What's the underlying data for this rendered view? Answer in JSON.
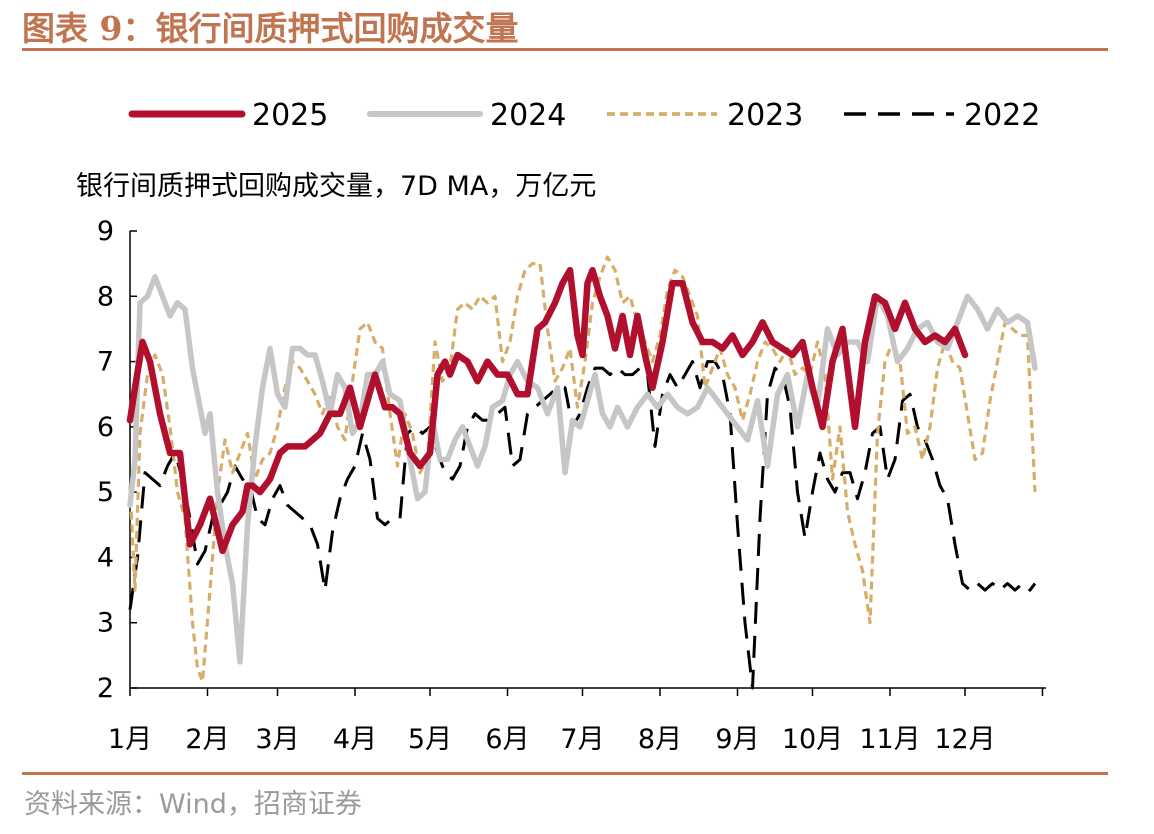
{
  "figure": {
    "title": "图表 9：银行间质押式回购成交量",
    "source": "资料来源：Wind，招商证券"
  },
  "colors": {
    "accent": "#c0744f",
    "s2025": "#b0102e",
    "s2024": "#c6c6c6",
    "s2023": "#d6ae6a",
    "s2022": "#000000"
  },
  "chart_data": {
    "type": "line",
    "title": "银行间质押式回购成交量，7D MA，万亿元",
    "xlabel": "",
    "ylabel": "",
    "x_unit": "day of year",
    "x_tick_labels": [
      "1月",
      "2月",
      "3月",
      "4月",
      "5月",
      "6月",
      "7月",
      "8月",
      "9月",
      "10月",
      "11月",
      "12月"
    ],
    "ylim": [
      2,
      9
    ],
    "yticks": [
      2,
      3,
      4,
      5,
      6,
      7,
      8,
      9
    ],
    "grid": false,
    "legend": "top",
    "series": [
      {
        "name": "2025",
        "style": "solid-thick",
        "x": [
          1,
          3,
          6,
          9,
          13,
          17,
          21,
          25,
          29,
          33,
          38,
          42,
          46,
          48,
          50,
          53,
          57,
          61,
          64,
          67,
          71,
          74,
          77,
          81,
          85,
          89,
          93,
          96,
          99,
          103,
          106,
          109,
          113,
          117,
          121,
          124,
          127,
          129,
          132,
          136,
          140,
          144,
          148,
          152,
          156,
          160,
          164,
          167,
          171,
          174,
          177,
          180,
          182,
          184,
          186,
          189,
          192,
          195,
          198,
          201,
          204,
          207,
          210,
          214,
          218,
          222,
          226,
          230,
          234,
          238,
          242,
          246,
          250,
          254,
          258,
          262,
          266,
          270,
          274,
          278,
          282,
          286,
          291,
          295,
          299,
          303,
          307,
          311,
          315,
          319,
          323,
          327,
          331,
          335
        ],
        "values": [
          6.1,
          6.6,
          7.3,
          7.0,
          6.2,
          5.6,
          5.6,
          4.2,
          4.5,
          4.9,
          4.1,
          4.5,
          4.7,
          5.1,
          5.1,
          5.0,
          5.2,
          5.6,
          5.7,
          5.7,
          5.7,
          5.8,
          5.9,
          6.2,
          6.2,
          6.6,
          6.0,
          6.4,
          6.8,
          6.3,
          6.3,
          6.2,
          5.6,
          5.4,
          5.6,
          6.8,
          7.0,
          6.8,
          7.1,
          7.0,
          6.7,
          7.0,
          6.8,
          6.8,
          6.5,
          6.5,
          7.5,
          7.6,
          7.9,
          8.2,
          8.4,
          7.4,
          7.1,
          8.2,
          8.4,
          8.0,
          7.7,
          7.2,
          7.7,
          7.1,
          7.7,
          7.1,
          6.6,
          7.3,
          8.2,
          8.2,
          7.6,
          7.3,
          7.3,
          7.2,
          7.4,
          7.1,
          7.3,
          7.6,
          7.3,
          7.2,
          7.1,
          7.3,
          6.6,
          6.0,
          7.0,
          7.5,
          6.0,
          7.3,
          8.0,
          7.9,
          7.5,
          7.9,
          7.5,
          7.3,
          7.4,
          7.3,
          7.5,
          7.1
        ]
      },
      {
        "name": "2024",
        "style": "solid-grey",
        "x": [
          1,
          3,
          5,
          8,
          11,
          14,
          17,
          20,
          23,
          26,
          29,
          31,
          33,
          36,
          39,
          42,
          45,
          48,
          51,
          54,
          57,
          60,
          63,
          66,
          69,
          72,
          75,
          78,
          81,
          84,
          87,
          90,
          93,
          96,
          99,
          102,
          105,
          109,
          113,
          116,
          119,
          122,
          125,
          128,
          131,
          134,
          137,
          140,
          143,
          146,
          150,
          153,
          156,
          160,
          164,
          168,
          172,
          175,
          178,
          181,
          184,
          187,
          190,
          193,
          196,
          200,
          204,
          208,
          212,
          216,
          220,
          224,
          228,
          232,
          236,
          240,
          244,
          248,
          252,
          256,
          260,
          264,
          268,
          272,
          276,
          280,
          284,
          288,
          292,
          296,
          300,
          304,
          308,
          312,
          316,
          320,
          324,
          328,
          332,
          336,
          340,
          344,
          348,
          352,
          356,
          360,
          363
        ],
        "values": [
          4.8,
          5.5,
          7.9,
          8.0,
          8.3,
          8.0,
          7.7,
          7.9,
          7.8,
          6.9,
          6.3,
          5.9,
          6.2,
          5.0,
          4.2,
          3.6,
          2.4,
          4.5,
          5.7,
          6.6,
          7.2,
          6.5,
          6.3,
          7.2,
          7.2,
          7.1,
          7.1,
          6.7,
          6.2,
          6.8,
          6.6,
          5.9,
          6.1,
          6.8,
          6.8,
          7.0,
          6.5,
          6.4,
          5.5,
          4.9,
          5.0,
          6.1,
          5.5,
          5.5,
          5.8,
          6.0,
          5.7,
          5.4,
          5.7,
          6.3,
          6.4,
          6.8,
          7.0,
          6.7,
          6.6,
          6.2,
          6.6,
          5.3,
          6.1,
          6.0,
          6.4,
          6.8,
          6.2,
          6.0,
          6.3,
          6.0,
          6.3,
          6.5,
          6.3,
          6.5,
          6.3,
          6.2,
          6.3,
          6.6,
          6.4,
          6.2,
          6.0,
          5.8,
          6.4,
          5.4,
          6.5,
          6.8,
          6.0,
          6.8,
          6.3,
          7.5,
          7.1,
          7.3,
          7.3,
          7.0,
          8.0,
          7.7,
          7.0,
          7.2,
          7.5,
          7.6,
          7.3,
          7.2,
          7.6,
          8.0,
          7.8,
          7.5,
          7.8,
          7.6,
          7.7,
          7.6,
          6.9
        ]
      },
      {
        "name": "2023",
        "style": "short-dash",
        "x": [
          1,
          3,
          5,
          8,
          11,
          14,
          17,
          20,
          23,
          26,
          28,
          30,
          33,
          36,
          39,
          42,
          45,
          48,
          51,
          54,
          57,
          60,
          63,
          66,
          69,
          72,
          75,
          78,
          81,
          84,
          87,
          90,
          93,
          96,
          99,
          102,
          105,
          108,
          111,
          114,
          117,
          120,
          123,
          126,
          129,
          132,
          135,
          138,
          141,
          144,
          147,
          150,
          153,
          156,
          159,
          162,
          165,
          168,
          171,
          174,
          177,
          180,
          183,
          186,
          189,
          192,
          195,
          198,
          201,
          204,
          207,
          210,
          213,
          216,
          219,
          222,
          225,
          228,
          231,
          234,
          237,
          240,
          243,
          246,
          249,
          252,
          255,
          258,
          261,
          264,
          267,
          270,
          273,
          276,
          279,
          282,
          285,
          288,
          291,
          294,
          297,
          300,
          303,
          306,
          309,
          312,
          315,
          318,
          321,
          324,
          327,
          330,
          333,
          336,
          339,
          342,
          345,
          348,
          351,
          354,
          357,
          360,
          363
        ],
        "values": [
          5.1,
          3.5,
          5.9,
          6.8,
          7.1,
          6.8,
          6.0,
          5.0,
          4.6,
          3.0,
          2.3,
          2.1,
          3.5,
          5.0,
          5.8,
          5.3,
          5.6,
          5.9,
          5.2,
          5.5,
          5.6,
          6.0,
          6.6,
          7.0,
          6.9,
          6.7,
          6.5,
          6.2,
          6.5,
          6.0,
          5.8,
          6.7,
          7.5,
          7.6,
          7.3,
          7.2,
          6.2,
          5.4,
          6.2,
          5.9,
          5.3,
          5.5,
          7.3,
          6.7,
          6.9,
          7.8,
          7.9,
          7.8,
          8.0,
          7.9,
          8.0,
          7.0,
          7.3,
          8.0,
          8.4,
          8.5,
          8.5,
          7.5,
          6.7,
          6.9,
          7.2,
          6.3,
          7.0,
          7.9,
          8.3,
          8.6,
          8.4,
          7.9,
          8.0,
          7.6,
          7.3,
          7.0,
          7.4,
          8.1,
          8.4,
          8.3,
          8.0,
          7.7,
          6.6,
          6.9,
          7.2,
          6.8,
          6.6,
          6.1,
          6.5,
          7.0,
          7.3,
          7.2,
          7.0,
          7.2,
          6.8,
          6.9,
          6.8,
          7.3,
          6.8,
          5.2,
          6.0,
          4.7,
          4.2,
          3.8,
          3.0,
          5.9,
          7.0,
          7.3,
          7.0,
          5.9,
          6.0,
          5.5,
          6.0,
          6.9,
          7.3,
          7.0,
          6.9,
          6.2,
          5.5,
          5.6,
          6.4,
          7.0,
          7.6,
          7.5,
          7.4,
          7.4,
          5.0
        ]
      },
      {
        "name": "2022",
        "style": "long-dash",
        "x": [
          1,
          4,
          7,
          10,
          13,
          16,
          19,
          22,
          25,
          28,
          31,
          34,
          37,
          40,
          43,
          46,
          49,
          52,
          55,
          58,
          61,
          64,
          67,
          70,
          73,
          76,
          79,
          82,
          85,
          88,
          91,
          94,
          97,
          100,
          103,
          106,
          109,
          112,
          115,
          118,
          121,
          124,
          127,
          130,
          133,
          136,
          139,
          142,
          145,
          148,
          151,
          154,
          157,
          160,
          163,
          166,
          169,
          172,
          175,
          178,
          181,
          184,
          187,
          190,
          193,
          196,
          199,
          202,
          205,
          208,
          211,
          214,
          217,
          220,
          223,
          226,
          229,
          232,
          235,
          238,
          241,
          244,
          247,
          250,
          253,
          256,
          259,
          262,
          265,
          268,
          271,
          274,
          277,
          280,
          283,
          286,
          289,
          292,
          295,
          298,
          301,
          304,
          307,
          310,
          313,
          316,
          319,
          322,
          325,
          328,
          331,
          334,
          337,
          340,
          343,
          346,
          349,
          352,
          355,
          358,
          361,
          363
        ],
        "values": [
          3.2,
          4.0,
          5.3,
          5.2,
          5.1,
          5.4,
          5.6,
          5.2,
          4.6,
          3.9,
          4.1,
          4.6,
          4.8,
          5.0,
          5.4,
          5.2,
          5.1,
          4.6,
          4.5,
          4.9,
          5.1,
          4.8,
          4.7,
          4.6,
          4.5,
          4.2,
          3.5,
          4.4,
          4.9,
          5.2,
          5.4,
          5.9,
          5.5,
          4.6,
          4.5,
          4.6,
          4.6,
          5.9,
          6.0,
          5.9,
          6.0,
          5.6,
          5.3,
          5.2,
          5.4,
          6.0,
          6.2,
          6.1,
          6.1,
          6.2,
          6.3,
          5.4,
          5.5,
          6.2,
          6.3,
          6.4,
          6.5,
          6.6,
          6.6,
          6.0,
          6.2,
          6.6,
          6.9,
          6.9,
          6.8,
          6.9,
          6.8,
          6.8,
          6.9,
          6.8,
          5.7,
          6.5,
          6.8,
          6.6,
          6.8,
          7.0,
          6.6,
          7.0,
          7.0,
          6.8,
          6.2,
          4.5,
          3.0,
          2.0,
          4.6,
          6.5,
          6.9,
          6.8,
          6.3,
          5.0,
          4.3,
          5.0,
          5.6,
          5.2,
          5.0,
          5.3,
          5.3,
          4.9,
          5.3,
          5.9,
          6.0,
          5.2,
          5.5,
          6.4,
          6.5,
          6.0,
          5.8,
          5.5,
          5.1,
          4.9,
          4.2,
          3.6,
          3.5,
          3.6,
          3.5,
          3.6,
          3.5,
          3.6,
          3.5,
          3.6,
          3.5,
          3.6
        ]
      }
    ]
  }
}
